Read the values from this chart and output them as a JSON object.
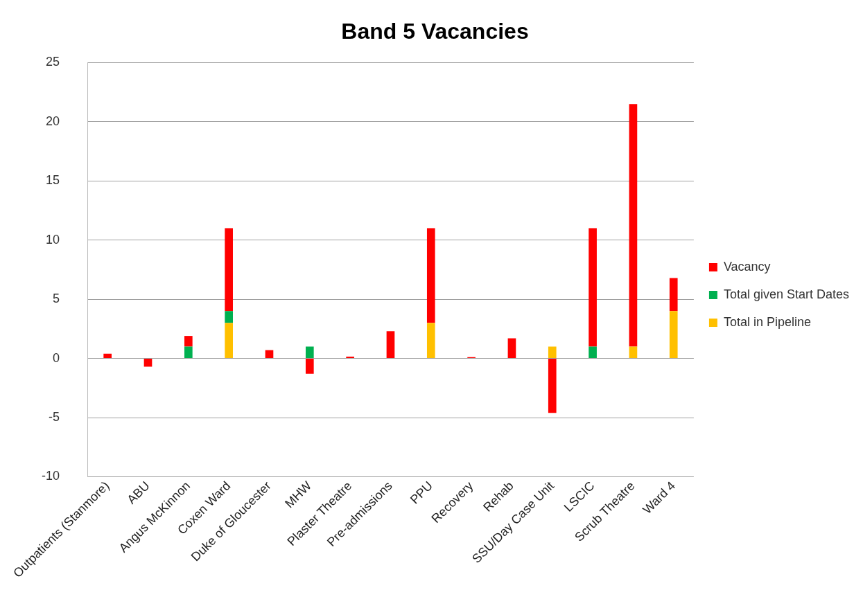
{
  "chart_data": {
    "type": "bar",
    "title": "Band 5 Vacancies",
    "stacked": true,
    "legend": "right",
    "grid": "y",
    "categories": [
      "Outpatients (Stanmore)",
      "ABU",
      "Angus McKinnon",
      "Coxen Ward",
      "Duke of Gloucester",
      "MHW",
      "Plaster Theatre",
      "Pre-admissions",
      "PPU",
      "Recovery",
      "Rehab",
      "SSU/Day Case Unit",
      "LSCIC",
      "Scrub Theatre",
      "Ward 4"
    ],
    "ylim": [
      -10,
      25
    ],
    "yticks": [
      -10,
      -5,
      0,
      5,
      10,
      15,
      20,
      25
    ],
    "series": [
      {
        "name": "Total in Pipeline",
        "color": "#ffc000",
        "values": [
          null,
          null,
          null,
          3,
          null,
          null,
          null,
          null,
          3,
          null,
          null,
          1,
          null,
          1,
          4
        ]
      },
      {
        "name": "Total given Start Dates",
        "color": "#00b050",
        "values": [
          null,
          null,
          1,
          1,
          null,
          1,
          null,
          null,
          null,
          null,
          null,
          null,
          1,
          null,
          null
        ]
      },
      {
        "name": "Vacancy",
        "color": "#ff0000",
        "values": [
          0.4,
          -0.7,
          0.9,
          7,
          0.7,
          -1.3,
          0.15,
          2.3,
          8,
          0.1,
          1.7,
          -4.6,
          10,
          20.5,
          2.8
        ]
      }
    ]
  }
}
